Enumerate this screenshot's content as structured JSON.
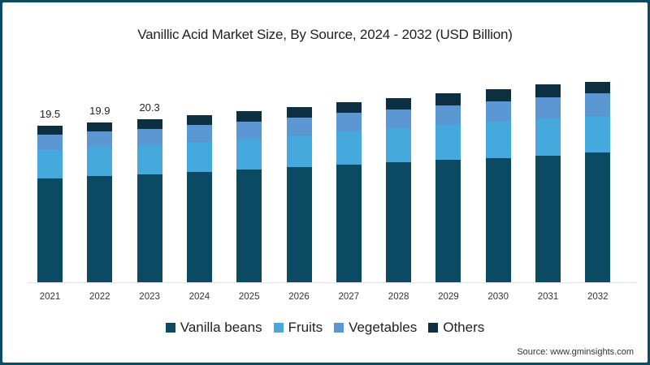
{
  "chart_data": {
    "type": "bar",
    "stacked": true,
    "title": "Vanillic Acid Market Size, By Source, 2024 - 2032 (USD Billion)",
    "xlabel": "",
    "ylabel": "",
    "categories": [
      "2021",
      "2022",
      "2023",
      "2024",
      "2025",
      "2026",
      "2027",
      "2028",
      "2029",
      "2030",
      "2031",
      "2032"
    ],
    "series": [
      {
        "name": "Vanilla beans",
        "color": "#0a4a63",
        "values": [
          12.9,
          13.2,
          13.4,
          13.7,
          14.0,
          14.3,
          14.6,
          14.9,
          15.2,
          15.5,
          15.8,
          16.2
        ]
      },
      {
        "name": "Fruits",
        "color": "#45a9de",
        "values": [
          3.6,
          3.7,
          3.7,
          3.8,
          3.9,
          4.0,
          4.2,
          4.3,
          4.4,
          4.5,
          4.6,
          4.5
        ]
      },
      {
        "name": "Vegetables",
        "color": "#5b98d3",
        "values": [
          1.9,
          1.9,
          2.0,
          2.1,
          2.1,
          2.2,
          2.3,
          2.3,
          2.4,
          2.5,
          2.6,
          2.8
        ]
      },
      {
        "name": "Others",
        "color": "#0c2f42",
        "values": [
          1.1,
          1.1,
          1.2,
          1.2,
          1.3,
          1.3,
          1.3,
          1.4,
          1.5,
          1.5,
          1.6,
          1.5
        ]
      }
    ],
    "totals": [
      19.5,
      19.9,
      20.3,
      21.0,
      21.4,
      21.9,
      22.4,
      22.9,
      23.5,
      24.0,
      24.6,
      25.1
    ],
    "value_labels": [
      {
        "category": "2021",
        "label": "19.5"
      },
      {
        "category": "2022",
        "label": "19.9"
      },
      {
        "category": "2023",
        "label": "20.3"
      }
    ],
    "ylim": [
      0,
      26
    ],
    "grid": false,
    "legend_position": "bottom"
  },
  "legend": [
    {
      "name": "Vanilla beans",
      "color": "#0a4a63"
    },
    {
      "name": "Fruits",
      "color": "#45a9de"
    },
    {
      "name": "Vegetables",
      "color": "#5b98d3"
    },
    {
      "name": "Others",
      "color": "#0c2f42"
    }
  ],
  "source": "Source: www.gminsights.com"
}
